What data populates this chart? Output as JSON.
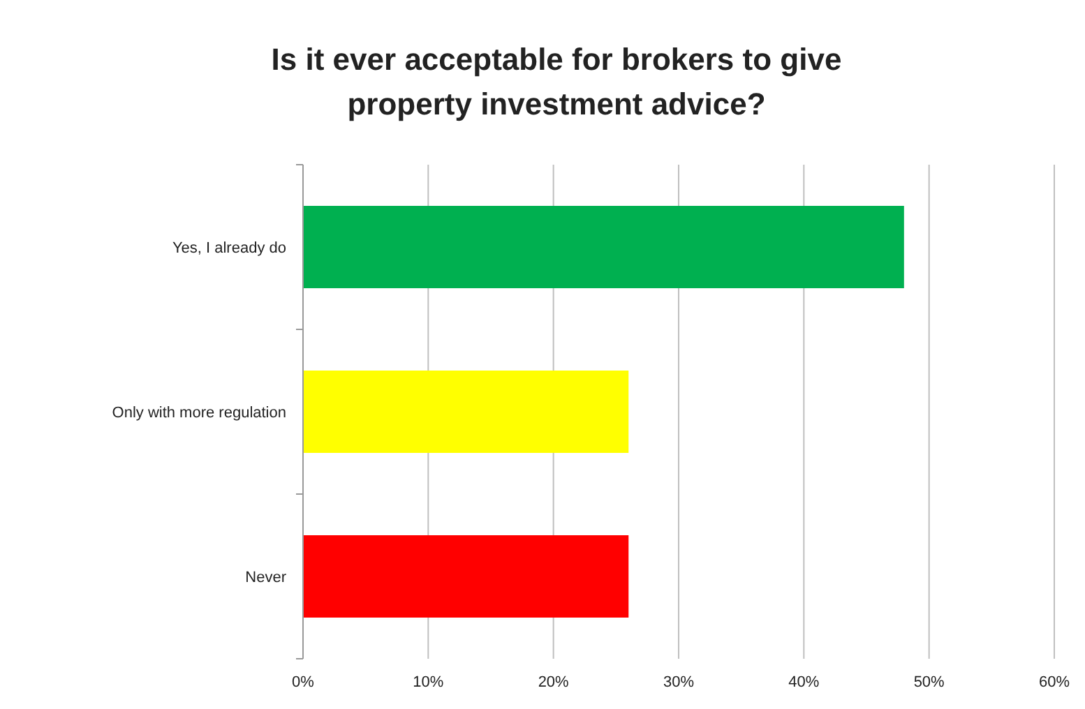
{
  "chart_data": {
    "type": "bar",
    "orientation": "horizontal",
    "title": "Is it ever acceptable for brokers to give property investment advice?",
    "categories": [
      "Yes, I already do",
      "Only with more regulation",
      "Never"
    ],
    "values": [
      48,
      26,
      26
    ],
    "colors": [
      "#00b050",
      "#ffff00",
      "#ff0000"
    ],
    "xlim": [
      0,
      60
    ],
    "xticks": [
      {
        "value": 0,
        "label": "0%"
      },
      {
        "value": 10,
        "label": "10%"
      },
      {
        "value": 20,
        "label": "20%"
      },
      {
        "value": 30,
        "label": "30%"
      },
      {
        "value": 40,
        "label": "40%"
      },
      {
        "value": 50,
        "label": "50%"
      },
      {
        "value": 60,
        "label": "60%"
      }
    ],
    "grid": "x"
  }
}
